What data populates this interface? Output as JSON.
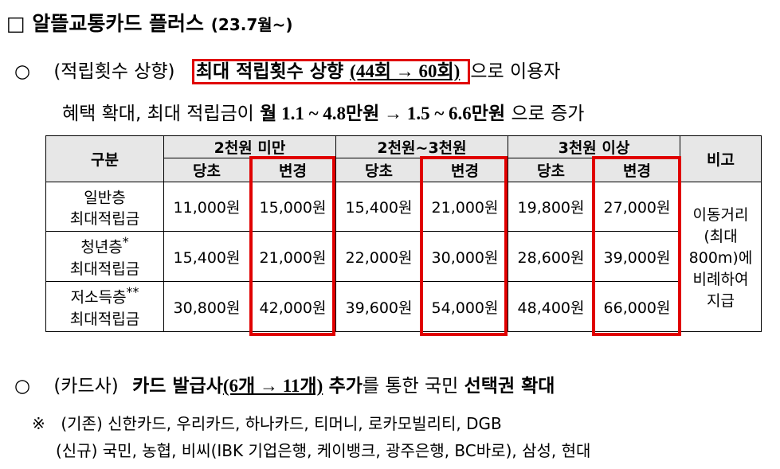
{
  "title": {
    "checkbox": "□",
    "main": "알뜰교통카드 플러스",
    "sub": "(23.7월~)"
  },
  "bullet1": {
    "symbol": "○",
    "lead": "(적립횟수 상향)",
    "boxed_text": "최대 적립횟수 상향",
    "boxed_detail": "(44회 → 60회)",
    "after": "으로 이용자",
    "line2_prefix": "혜택 확대, 최대 적립금이 ",
    "line2_bold": "월 1.1 ~ 4.8만원 → 1.5 ~ 6.6만원",
    "line2_suffix": "으로 증가"
  },
  "table": {
    "header_col": "구분",
    "groups": [
      "2천원 미만",
      "2천원~3천원",
      "3천원 이상"
    ],
    "sub_before": "당초",
    "sub_after": "변경",
    "note_header": "비고",
    "rows": [
      {
        "label_line1": "일반층",
        "label_mark": "",
        "label_line2": "최대적립금",
        "values": [
          "11,000원",
          "15,000원",
          "15,400원",
          "21,000원",
          "19,800원",
          "27,000원"
        ]
      },
      {
        "label_line1": "청년층",
        "label_mark": "*",
        "label_line2": "최대적립금",
        "values": [
          "15,400원",
          "21,000원",
          "22,000원",
          "30,000원",
          "28,600원",
          "39,000원"
        ]
      },
      {
        "label_line1": "저소득층",
        "label_mark": "**",
        "label_line2": "최대적립금",
        "values": [
          "30,800원",
          "42,000원",
          "39,600원",
          "54,000원",
          "48,400원",
          "66,000원"
        ]
      }
    ],
    "note_lines": [
      "이동거리",
      "(최대",
      "800m)에",
      "비례하여",
      "지급"
    ]
  },
  "bullet2": {
    "symbol": "○",
    "lead": "(카드사)",
    "bold1": "카드 발급사",
    "bold_detail": "(6개 → 11개)",
    "bold2": "추가",
    "middle": "를 통한 국민 ",
    "bold3": "선택권 확대"
  },
  "notes": {
    "mark": "※",
    "existing": "(기존) 신한카드, 우리카드, 하나카드, 티머니, 로카모빌리티, DGB",
    "new": "(신규) 국민, 농협, 비씨(IBK 기업은행, 케이뱅크, 광주은행, BC바로), 삼성, 현대"
  },
  "colors": {
    "highlight": "#e00000",
    "header_bg": "#e7e7e7"
  }
}
